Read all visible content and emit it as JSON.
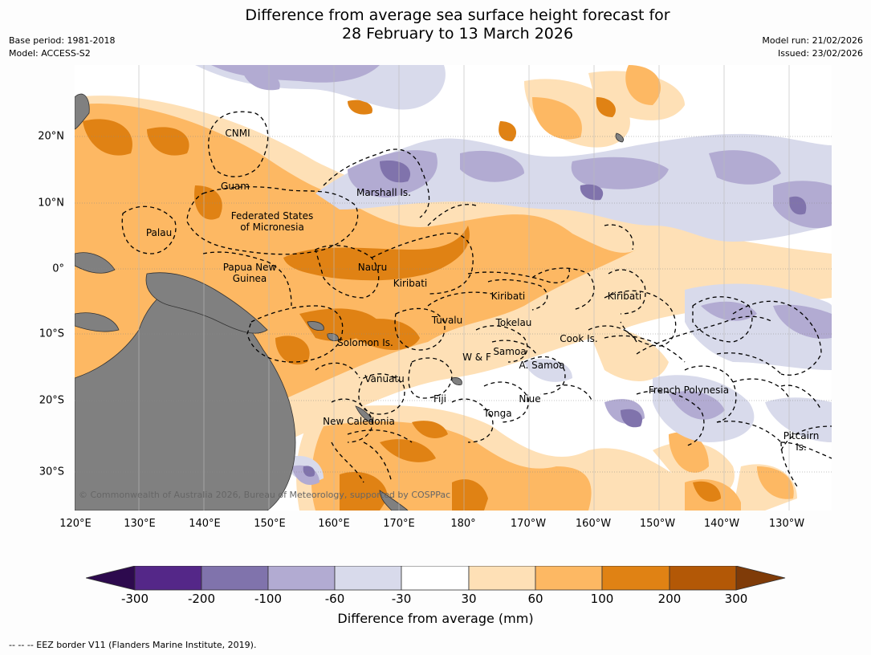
{
  "header": {
    "title_line1": "Difference from average sea surface height forecast for",
    "title_line2": "28 February to 13 March 2026",
    "base_period": "Base period: 1981-2018",
    "model": "Model: ACCESS-S2",
    "model_run": "Model run: 21/02/2026",
    "issued": "Issued: 23/02/2026"
  },
  "map": {
    "latitudes": [
      "20°N",
      "10°N",
      "0°",
      "10°S",
      "20°S",
      "30°S"
    ],
    "longitudes": [
      "120°E",
      "130°E",
      "140°E",
      "150°E",
      "160°E",
      "170°E",
      "180°",
      "170°W",
      "160°W",
      "150°W",
      "140°W",
      "130°W"
    ],
    "regions": {
      "cnmi": "CNMI",
      "guam": "Guam",
      "marshall": "Marshall Is.",
      "fsm_1": "Federated States",
      "fsm_2": "of Micronesia",
      "palau": "Palau",
      "png_1": "Papua New",
      "png_2": "Guinea",
      "nauru": "Nauru",
      "kiribati_w": "Kiribati",
      "kiribati_c": "Kiribati",
      "kiribati_e": "Kiribati",
      "tuvalu": "Tuvalu",
      "tokelau": "Tokelau",
      "cook": "Cook Is.",
      "solomon": "Solomon Is.",
      "wf": "W & F",
      "samoa": "Samoa",
      "asamoa": "A. Samoa",
      "vanuatu": "Vanuatu",
      "fiji": "Fiji",
      "niue": "Niue",
      "tonga": "Tonga",
      "frpoly": "French Polynesia",
      "newcal": "New Caledonia",
      "pitcairn_1": "Pitcairn",
      "pitcairn_2": "Is."
    },
    "copyright": "© Commonwealth of Australia 2026, Bureau of Meteorology, supported by COSPPac"
  },
  "colorbar": {
    "label": "Difference from average (mm)",
    "ticks": [
      "-300",
      "-200",
      "-100",
      "-60",
      "-30",
      "30",
      "60",
      "100",
      "200",
      "300"
    ],
    "colors": [
      "#2d0a4e",
      "#542788",
      "#8073ac",
      "#b2abd2",
      "#d8daeb",
      "#ffffff",
      "#fee0b6",
      "#fdb863",
      "#e08214",
      "#b35806",
      "#7f3b08"
    ]
  },
  "footer": {
    "legend": "--  --  -- EEZ border V11 (Flanders Marine Institute, 2019)."
  }
}
